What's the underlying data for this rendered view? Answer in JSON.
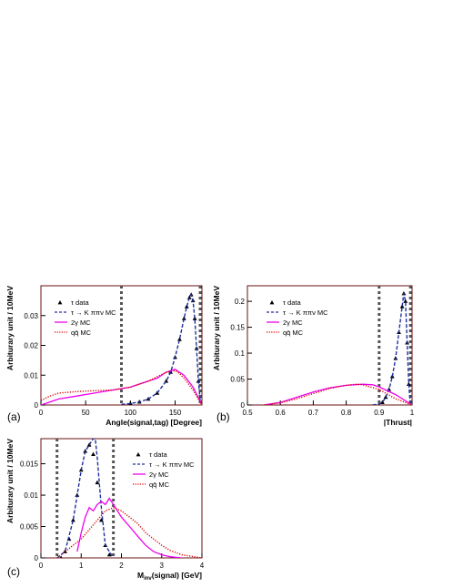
{
  "chart_data": [
    {
      "panel_label": "(a)",
      "type": "line",
      "title": "",
      "xlabel": "Angle(signal,tag) [Degree]",
      "ylabel": "Arbiturary unit / 10MeV",
      "xlim": [
        0,
        180
      ],
      "ylim": [
        0,
        0.04
      ],
      "x_ticks": [
        "0",
        "50",
        "100",
        "150"
      ],
      "y_ticks": [
        "0",
        "0.01",
        "0.02",
        "0.03"
      ],
      "cut_lines": [
        90,
        178
      ],
      "legend": {
        "placement": "top-left",
        "entries": [
          "τ data",
          "τ → K ππν MC",
          "2γ MC",
          "qq̄ MC"
        ]
      },
      "series": [
        {
          "name": "τ data",
          "style": "markers",
          "color": "#000000",
          "x": [
            100,
            110,
            120,
            130,
            140,
            145,
            150,
            155,
            160,
            163,
            166,
            168,
            170,
            172,
            174,
            176
          ],
          "y": [
            0.0005,
            0.001,
            0.002,
            0.004,
            0.008,
            0.011,
            0.016,
            0.022,
            0.029,
            0.033,
            0.036,
            0.037,
            0.035,
            0.029,
            0.019,
            0.008
          ]
        },
        {
          "name": "τ → K ππν MC",
          "style": "dashed",
          "color": "#1f2f9f",
          "x": [
            90,
            100,
            110,
            120,
            130,
            140,
            145,
            150,
            155,
            160,
            163,
            166,
            168,
            170,
            172,
            174,
            176,
            178,
            180
          ],
          "y": [
            0.0002,
            0.0005,
            0.001,
            0.002,
            0.004,
            0.008,
            0.011,
            0.016,
            0.022,
            0.029,
            0.033,
            0.036,
            0.037,
            0.035,
            0.029,
            0.019,
            0.008,
            0.002,
            0.0
          ]
        },
        {
          "name": "2γ MC",
          "style": "solid",
          "color": "#ee00ee",
          "x": [
            0,
            10,
            20,
            40,
            60,
            80,
            100,
            120,
            130,
            140,
            150,
            160,
            170,
            175,
            180
          ],
          "y": [
            0.0,
            0.001,
            0.002,
            0.003,
            0.004,
            0.005,
            0.006,
            0.008,
            0.009,
            0.011,
            0.012,
            0.01,
            0.006,
            0.003,
            0.0
          ]
        },
        {
          "name": "qq̄ MC",
          "style": "dotted",
          "color": "#dd0000",
          "x": [
            0,
            10,
            20,
            40,
            60,
            80,
            100,
            120,
            140,
            150,
            155,
            160,
            170,
            180
          ],
          "y": [
            0.0015,
            0.003,
            0.004,
            0.0045,
            0.0048,
            0.005,
            0.006,
            0.008,
            0.011,
            0.0115,
            0.0105,
            0.009,
            0.005,
            0.0
          ]
        }
      ]
    },
    {
      "panel_label": "(b)",
      "type": "line",
      "title": "",
      "xlabel": "|Thrust|",
      "ylabel": "Arbiturary unit / 10MeV",
      "xlim": [
        0.5,
        1.0
      ],
      "ylim": [
        0,
        0.23
      ],
      "x_ticks": [
        "0.5",
        "0.6",
        "0.7",
        "0.8",
        "0.9",
        "1"
      ],
      "y_ticks": [
        "0",
        "0.05",
        "0.1",
        "0.15",
        "0.2"
      ],
      "cut_lines": [
        0.9,
        0.995
      ],
      "legend": {
        "placement": "top-left",
        "entries": [
          "τ data",
          "τ → K ππν MC",
          "2γ MC",
          "qq̄ MC"
        ]
      },
      "series": [
        {
          "name": "τ data",
          "style": "markers",
          "color": "#000000",
          "x": [
            0.91,
            0.92,
            0.93,
            0.94,
            0.95,
            0.96,
            0.97,
            0.975,
            0.98,
            0.985,
            0.99
          ],
          "y": [
            0.005,
            0.015,
            0.03,
            0.055,
            0.09,
            0.14,
            0.19,
            0.215,
            0.2,
            0.12,
            0.04
          ]
        },
        {
          "name": "τ → K ππν MC",
          "style": "dashed",
          "color": "#1f2f9f",
          "x": [
            0.88,
            0.9,
            0.91,
            0.92,
            0.93,
            0.94,
            0.95,
            0.96,
            0.97,
            0.975,
            0.98,
            0.985,
            0.99,
            0.995
          ],
          "y": [
            0.0,
            0.002,
            0.005,
            0.015,
            0.03,
            0.055,
            0.09,
            0.14,
            0.19,
            0.215,
            0.2,
            0.12,
            0.04,
            0.0
          ]
        },
        {
          "name": "2γ MC",
          "style": "solid",
          "color": "#ee00ee",
          "x": [
            0.55,
            0.6,
            0.65,
            0.7,
            0.75,
            0.8,
            0.85,
            0.88,
            0.9,
            0.95,
            0.98,
            1.0
          ],
          "y": [
            0.0,
            0.005,
            0.015,
            0.025,
            0.033,
            0.038,
            0.04,
            0.039,
            0.035,
            0.02,
            0.008,
            0.0
          ]
        },
        {
          "name": "qq̄ MC",
          "style": "dotted",
          "color": "#dd0000",
          "x": [
            0.55,
            0.6,
            0.65,
            0.7,
            0.75,
            0.8,
            0.83,
            0.85,
            0.9,
            0.95,
            1.0
          ],
          "y": [
            0.0,
            0.004,
            0.012,
            0.022,
            0.032,
            0.038,
            0.04,
            0.039,
            0.03,
            0.012,
            0.0
          ]
        }
      ]
    },
    {
      "panel_label": "(c)",
      "type": "line",
      "title": "",
      "xlabel": "M",
      "xlabel_sub": "inv",
      "xlabel_rest": "(signal) [GeV]",
      "ylabel": "Arbiturary unit / 10MeV",
      "xlim": [
        0,
        4
      ],
      "ylim": [
        0,
        0.019
      ],
      "x_ticks": [
        "0",
        "1",
        "2",
        "3",
        "4"
      ],
      "y_ticks": [
        "0",
        "0.005",
        "0.01",
        "0.015"
      ],
      "cut_lines": [
        0.4,
        1.8
      ],
      "legend": {
        "placement": "top-right",
        "entries": [
          "τ data",
          "τ → K ππν MC",
          "2γ MC",
          "qq̄ MC"
        ]
      },
      "series": [
        {
          "name": "τ data",
          "style": "markers",
          "color": "#000000",
          "x": [
            0.5,
            0.6,
            0.7,
            0.8,
            0.9,
            1.0,
            1.1,
            1.2,
            1.3,
            1.4,
            1.5,
            1.6,
            1.7
          ],
          "y": [
            0.0,
            0.001,
            0.003,
            0.006,
            0.01,
            0.014,
            0.017,
            0.018,
            0.0165,
            0.012,
            0.006,
            0.002,
            0.0005
          ]
        },
        {
          "name": "τ → K ππν MC",
          "style": "dashed",
          "color": "#1f2f9f",
          "x": [
            0.4,
            0.6,
            0.8,
            1.0,
            1.1,
            1.2,
            1.3,
            1.35,
            1.4,
            1.5,
            1.6,
            1.8
          ],
          "y": [
            0.0,
            0.001,
            0.006,
            0.014,
            0.017,
            0.018,
            0.019,
            0.019,
            0.016,
            0.008,
            0.002,
            0.0
          ]
        },
        {
          "name": "2γ MC",
          "style": "solid",
          "color": "#ee00ee",
          "x": [
            0.9,
            1.0,
            1.1,
            1.2,
            1.3,
            1.4,
            1.5,
            1.6,
            1.7,
            1.8,
            1.9,
            2.0,
            2.2,
            2.4,
            2.6,
            2.8,
            3.0,
            3.2,
            3.5
          ],
          "y": [
            0.001,
            0.004,
            0.0065,
            0.008,
            0.0075,
            0.0085,
            0.009,
            0.0085,
            0.0095,
            0.0085,
            0.0075,
            0.0065,
            0.005,
            0.0035,
            0.002,
            0.001,
            0.0005,
            0.0002,
            0.0
          ]
        },
        {
          "name": "qq̄ MC",
          "style": "dotted",
          "color": "#dd0000",
          "x": [
            0.4,
            0.8,
            1.0,
            1.2,
            1.4,
            1.6,
            1.8,
            2.0,
            2.2,
            2.4,
            2.6,
            2.8,
            3.0,
            3.2,
            3.5,
            4.0
          ],
          "y": [
            0.0,
            0.002,
            0.003,
            0.0045,
            0.006,
            0.0075,
            0.008,
            0.0075,
            0.0065,
            0.0055,
            0.004,
            0.003,
            0.002,
            0.0012,
            0.0005,
            0.0
          ]
        }
      ]
    }
  ]
}
